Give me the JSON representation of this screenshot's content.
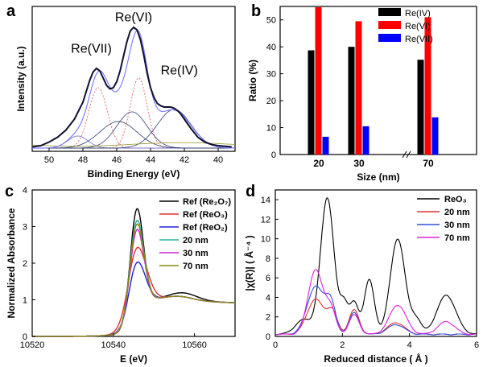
{
  "chart_data": [
    {
      "panel": "a",
      "type": "line",
      "xlabel": "Binding Energy (eV)",
      "ylabel": "Intensity (a.u.)",
      "xlim": [
        51,
        39
      ],
      "xticks": [
        50,
        48,
        46,
        44,
        42,
        40
      ],
      "annotations": [
        {
          "text": "Re(VII)",
          "x": 47.5,
          "y": 0.79
        },
        {
          "text": "Re(VI)",
          "x": 45.0,
          "y": 1.05
        },
        {
          "text": "Re(IV)",
          "x": 42.3,
          "y": 0.61
        }
      ],
      "experimental": {
        "x": [
          51,
          50.5,
          50,
          49.5,
          49,
          48.5,
          48,
          47.8,
          47.6,
          47.4,
          47.2,
          47.0,
          46.8,
          46.6,
          46.4,
          46.2,
          46.0,
          45.8,
          45.6,
          45.4,
          45.2,
          45.0,
          44.8,
          44.6,
          44.4,
          44.2,
          44.0,
          43.8,
          43.6,
          43.4,
          43.2,
          43.0,
          42.8,
          42.6,
          42.4,
          42.2,
          42.0,
          41.6,
          41.2,
          40.8,
          40.4,
          40.0,
          39.6,
          39.2
        ],
        "y": [
          0.01,
          0.02,
          0.05,
          0.09,
          0.15,
          0.24,
          0.38,
          0.47,
          0.56,
          0.63,
          0.66,
          0.64,
          0.58,
          0.52,
          0.49,
          0.5,
          0.55,
          0.64,
          0.76,
          0.88,
          0.97,
          1.0,
          0.98,
          0.9,
          0.77,
          0.62,
          0.5,
          0.42,
          0.37,
          0.35,
          0.34,
          0.34,
          0.34,
          0.33,
          0.31,
          0.28,
          0.24,
          0.16,
          0.09,
          0.05,
          0.03,
          0.02,
          0.015,
          0.01
        ]
      },
      "components": [
        {
          "name": "Re(VII) 4f7/2",
          "center": 47.1,
          "height": 0.5,
          "width": 0.55,
          "color": "#e05050"
        },
        {
          "name": "Re(VII) 4f5/2",
          "center": 44.7,
          "height": 0.58,
          "width": 0.5,
          "color": "#e05050"
        },
        {
          "name": "Re(VI) 4f7/2",
          "center": 48.3,
          "height": 0.1,
          "width": 0.6,
          "color": "#7070c0"
        },
        {
          "name": "Re(VI) 4f5/2",
          "center": 45.1,
          "height": 0.3,
          "width": 0.9,
          "color": "#404080"
        },
        {
          "name": "Re(IV) 4f7/2",
          "center": 45.9,
          "height": 0.22,
          "width": 1.1,
          "color": "#304070"
        },
        {
          "name": "Re(IV) 4f5/2",
          "center": 42.6,
          "height": 0.32,
          "width": 1.0,
          "color": "#304070"
        },
        {
          "name": "background",
          "center": 45.0,
          "height": 0.04,
          "width": 5.0,
          "color": "#9a9a30"
        }
      ]
    },
    {
      "panel": "b",
      "type": "bar",
      "xlabel": "Size (nm)",
      "ylabel": "Ratio (%)",
      "categories": [
        "20",
        "30",
        "70"
      ],
      "ylim": [
        0,
        55
      ],
      "yticks": [
        0,
        10,
        20,
        30,
        40,
        50
      ],
      "axis_break": true,
      "legend_position": "top-right",
      "series": [
        {
          "name": "Re(IV)",
          "color": "#000000",
          "values": [
            38.7,
            40.0,
            35.2
          ]
        },
        {
          "name": "Re(VI)",
          "color": "#ff0000",
          "values": [
            54.7,
            49.5,
            51.0
          ]
        },
        {
          "name": "Re(VII)",
          "color": "#0000ff",
          "values": [
            6.6,
            10.5,
            13.8
          ]
        }
      ]
    },
    {
      "panel": "c",
      "type": "line",
      "xlabel": "E (eV)",
      "ylabel": "Normalized Absorbance",
      "xlim": [
        10520,
        10570
      ],
      "ylim": [
        0,
        4
      ],
      "xticks": [
        10520,
        10540,
        10560
      ],
      "yticks": [
        0,
        1,
        2,
        3,
        4
      ],
      "legend_position": "top-right",
      "series": [
        {
          "name": "Ref (Re₂O₇)",
          "color": "#000000",
          "peak": 3.62,
          "width": 1.6
        },
        {
          "name": "Ref (ReO₃)",
          "color": "#e03030",
          "peak": 2.55,
          "width": 2.3
        },
        {
          "name": "Ref (ReO₂)",
          "color": "#2020d0",
          "peak": 2.15,
          "width": 2.0
        },
        {
          "name": "20 nm",
          "color": "#20b0a0",
          "peak": 3.3,
          "width": 1.7
        },
        {
          "name": "30 nm",
          "color": "#d020d0",
          "peak": 3.05,
          "width": 1.7
        },
        {
          "name": "70 nm",
          "color": "#8a8a10",
          "peak": 3.2,
          "width": 1.7
        }
      ]
    },
    {
      "panel": "d",
      "type": "line",
      "xlabel": "Reduced distance ( Å )",
      "ylabel": "|χ(R)| ( Å⁻⁴ )",
      "xlim": [
        0,
        6
      ],
      "ylim": [
        0,
        15
      ],
      "xticks": [
        0,
        2,
        4,
        6
      ],
      "yticks": [
        0,
        2,
        4,
        6,
        8,
        10,
        12,
        14
      ],
      "legend_position": "top-right",
      "series": [
        {
          "name": "ReO₃",
          "color": "#000000",
          "peaks": [
            [
              0.85,
              1.5,
              0.25
            ],
            [
              1.55,
              14.0,
              0.2
            ],
            [
              2.05,
              3.0,
              0.12
            ],
            [
              2.35,
              3.2,
              0.13
            ],
            [
              2.8,
              5.6,
              0.15
            ],
            [
              3.65,
              9.8,
              0.22
            ],
            [
              4.2,
              1.5,
              0.15
            ],
            [
              5.1,
              4.0,
              0.28
            ]
          ]
        },
        {
          "name": "20 nm",
          "color": "#e03030",
          "peaks": [
            [
              1.2,
              3.6,
              0.25
            ],
            [
              1.7,
              2.2,
              0.15
            ],
            [
              2.35,
              2.5,
              0.15
            ],
            [
              3.6,
              1.2,
              0.25
            ]
          ]
        },
        {
          "name": "30 nm",
          "color": "#3050e0",
          "peaks": [
            [
              1.2,
              4.9,
              0.25
            ],
            [
              1.65,
              3.0,
              0.15
            ],
            [
              2.35,
              2.2,
              0.15
            ],
            [
              3.6,
              1.0,
              0.25
            ]
          ]
        },
        {
          "name": "70 nm",
          "color": "#e020e0",
          "peaks": [
            [
              1.2,
              6.6,
              0.22
            ],
            [
              1.65,
              2.5,
              0.15
            ],
            [
              2.35,
              2.0,
              0.15
            ],
            [
              3.65,
              3.0,
              0.25
            ],
            [
              5.1,
              1.3,
              0.25
            ]
          ]
        }
      ]
    }
  ],
  "panel_labels": [
    "a",
    "b",
    "c",
    "d"
  ]
}
